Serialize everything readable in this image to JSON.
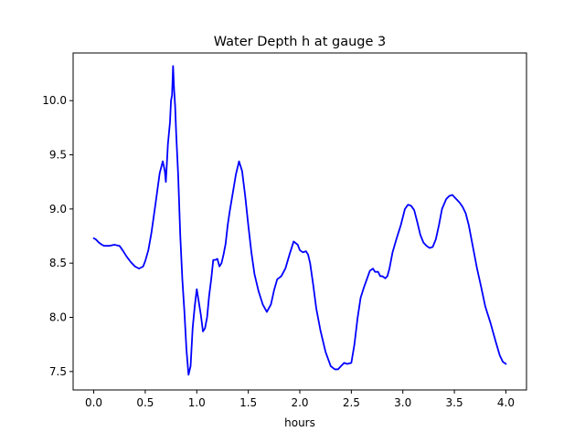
{
  "chart_data": {
    "type": "line",
    "title": "Water Depth h at gauge 3",
    "xlabel": "hours",
    "ylabel": "",
    "xlim": [
      -0.2,
      4.2
    ],
    "ylim": [
      7.33,
      10.44
    ],
    "xticks": [
      0.0,
      0.5,
      1.0,
      1.5,
      2.0,
      2.5,
      3.0,
      3.5,
      4.0
    ],
    "xtick_labels": [
      "0.0",
      "0.5",
      "1.0",
      "1.5",
      "2.0",
      "2.5",
      "3.0",
      "3.5",
      "4.0"
    ],
    "yticks": [
      7.5,
      8.0,
      8.5,
      9.0,
      9.5,
      10.0
    ],
    "ytick_labels": [
      "7.5",
      "8.0",
      "8.5",
      "9.0",
      "9.5",
      "10.0"
    ],
    "grid": false,
    "series": [
      {
        "color": "#0000ff",
        "x": [
          0.0,
          0.02,
          0.05,
          0.08,
          0.1,
          0.15,
          0.2,
          0.25,
          0.28,
          0.32,
          0.36,
          0.4,
          0.44,
          0.48,
          0.5,
          0.53,
          0.56,
          0.6,
          0.64,
          0.67,
          0.69,
          0.7,
          0.72,
          0.74,
          0.75,
          0.76,
          0.77,
          0.78,
          0.79,
          0.8,
          0.82,
          0.84,
          0.86,
          0.88,
          0.9,
          0.92,
          0.94,
          0.96,
          0.98,
          1.0,
          1.02,
          1.04,
          1.06,
          1.08,
          1.1,
          1.12,
          1.14,
          1.16,
          1.18,
          1.2,
          1.22,
          1.24,
          1.26,
          1.28,
          1.3,
          1.32,
          1.35,
          1.38,
          1.41,
          1.44,
          1.47,
          1.5,
          1.53,
          1.56,
          1.6,
          1.64,
          1.68,
          1.72,
          1.75,
          1.78,
          1.82,
          1.86,
          1.9,
          1.94,
          1.98,
          2.0,
          2.03,
          2.06,
          2.08,
          2.1,
          2.13,
          2.16,
          2.2,
          2.25,
          2.3,
          2.34,
          2.37,
          2.4,
          2.43,
          2.46,
          2.5,
          2.53,
          2.56,
          2.59,
          2.62,
          2.65,
          2.68,
          2.71,
          2.73,
          2.76,
          2.78,
          2.8,
          2.83,
          2.85,
          2.87,
          2.9,
          2.94,
          2.98,
          3.02,
          3.05,
          3.08,
          3.11,
          3.14,
          3.17,
          3.2,
          3.23,
          3.26,
          3.29,
          3.32,
          3.35,
          3.38,
          3.42,
          3.45,
          3.48,
          3.51,
          3.55,
          3.58,
          3.61,
          3.64,
          3.68,
          3.72,
          3.76,
          3.8,
          3.85,
          3.9,
          3.94,
          3.97,
          4.0
        ],
        "y": [
          8.73,
          8.72,
          8.69,
          8.67,
          8.66,
          8.66,
          8.67,
          8.66,
          8.62,
          8.56,
          8.51,
          8.47,
          8.45,
          8.47,
          8.52,
          8.62,
          8.78,
          9.05,
          9.33,
          9.44,
          9.35,
          9.25,
          9.6,
          9.8,
          10.0,
          10.05,
          10.32,
          10.1,
          9.95,
          9.7,
          9.3,
          8.75,
          8.35,
          8.05,
          7.7,
          7.47,
          7.55,
          7.9,
          8.1,
          8.26,
          8.14,
          8.02,
          7.87,
          7.9,
          8.0,
          8.2,
          8.35,
          8.53,
          8.53,
          8.54,
          8.47,
          8.5,
          8.58,
          8.68,
          8.85,
          8.98,
          9.15,
          9.32,
          9.44,
          9.35,
          9.12,
          8.85,
          8.6,
          8.4,
          8.24,
          8.12,
          8.05,
          8.12,
          8.25,
          8.35,
          8.38,
          8.45,
          8.58,
          8.7,
          8.67,
          8.62,
          8.6,
          8.61,
          8.58,
          8.5,
          8.3,
          8.08,
          7.88,
          7.68,
          7.55,
          7.52,
          7.52,
          7.55,
          7.58,
          7.57,
          7.58,
          7.75,
          7.99,
          8.18,
          8.27,
          8.35,
          8.43,
          8.45,
          8.42,
          8.42,
          8.38,
          8.38,
          8.36,
          8.38,
          8.45,
          8.6,
          8.73,
          8.85,
          9.0,
          9.04,
          9.03,
          8.99,
          8.88,
          8.76,
          8.69,
          8.66,
          8.64,
          8.65,
          8.72,
          8.85,
          9.0,
          9.09,
          9.12,
          9.13,
          9.1,
          9.06,
          9.02,
          8.96,
          8.85,
          8.65,
          8.45,
          8.28,
          8.1,
          7.95,
          7.78,
          7.65,
          7.59,
          7.57
        ]
      }
    ]
  }
}
